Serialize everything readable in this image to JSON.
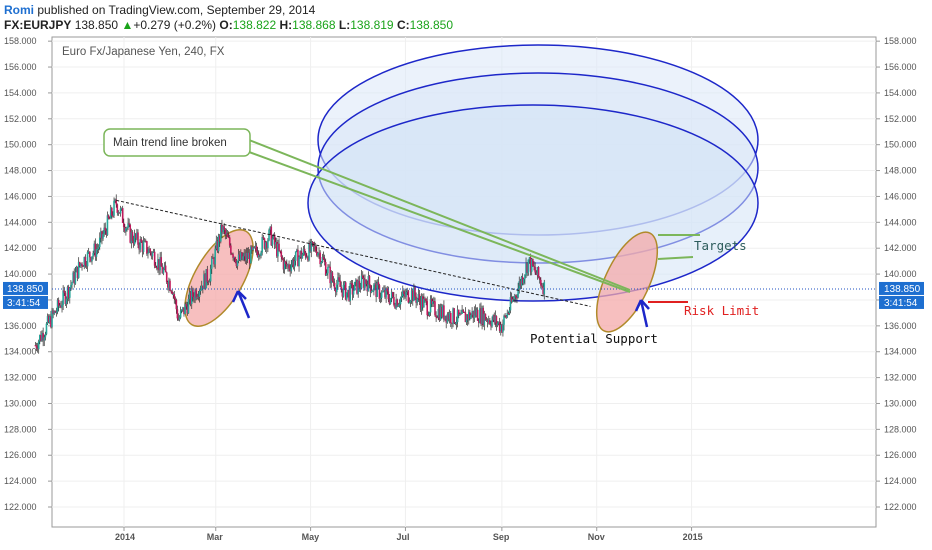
{
  "header": {
    "author": "Romi",
    "published": "published on TradingView.com, September 29, 2014",
    "symbol": "FX:EURJPY",
    "last": "138.850",
    "change": "+0.279 (+0.2%)",
    "o_label": "O:",
    "o_value": "138.822",
    "h_label": "H:",
    "h_value": "138.868",
    "l_label": "L:",
    "l_value": "138.819",
    "c_label": "C:",
    "c_value": "138.850",
    "up_icon": "triangle-up-icon"
  },
  "chart_data": {
    "type": "candlestick",
    "title": "Euro Fx/Japanese Yen, 240, FX",
    "ylim": [
      121,
      158.5
    ],
    "y_ticks": [
      "122.000",
      "124.000",
      "126.000",
      "128.000",
      "130.000",
      "132.000",
      "134.000",
      "136.000",
      "138.000",
      "140.000",
      "142.000",
      "144.000",
      "146.000",
      "148.000",
      "150.000",
      "152.000",
      "154.000",
      "156.000",
      "158.000"
    ],
    "x_ticks": [
      "2014",
      "Mar",
      "May",
      "Jul",
      "Sep",
      "Nov",
      "2015"
    ],
    "current_price_label": "138.850",
    "countdown_label": "3:41:54",
    "price_series": [
      {
        "date": "2013-11-05",
        "close": 134.5
      },
      {
        "date": "2013-11-15",
        "close": 136.5
      },
      {
        "date": "2013-11-25",
        "close": 138.5
      },
      {
        "date": "2013-12-05",
        "close": 141.0
      },
      {
        "date": "2013-12-15",
        "close": 142.0
      },
      {
        "date": "2013-12-27",
        "close": 145.5
      },
      {
        "date": "2014-01-05",
        "close": 143.0
      },
      {
        "date": "2014-01-20",
        "close": 141.5
      },
      {
        "date": "2014-02-01",
        "close": 139.0
      },
      {
        "date": "2014-02-05",
        "close": 136.5
      },
      {
        "date": "2014-02-15",
        "close": 138.5
      },
      {
        "date": "2014-02-25",
        "close": 140.0
      },
      {
        "date": "2014-03-05",
        "close": 143.5
      },
      {
        "date": "2014-03-15",
        "close": 141.0
      },
      {
        "date": "2014-03-25",
        "close": 141.5
      },
      {
        "date": "2014-04-05",
        "close": 143.0
      },
      {
        "date": "2014-04-15",
        "close": 140.5
      },
      {
        "date": "2014-04-25",
        "close": 141.5
      },
      {
        "date": "2014-05-05",
        "close": 142.0
      },
      {
        "date": "2014-05-15",
        "close": 139.5
      },
      {
        "date": "2014-05-25",
        "close": 138.5
      },
      {
        "date": "2014-06-05",
        "close": 139.5
      },
      {
        "date": "2014-06-15",
        "close": 138.5
      },
      {
        "date": "2014-06-25",
        "close": 138.0
      },
      {
        "date": "2014-07-05",
        "close": 138.5
      },
      {
        "date": "2014-07-15",
        "close": 137.5
      },
      {
        "date": "2014-07-25",
        "close": 137.0
      },
      {
        "date": "2014-08-05",
        "close": 136.5
      },
      {
        "date": "2014-08-15",
        "close": 137.0
      },
      {
        "date": "2014-08-25",
        "close": 136.5
      },
      {
        "date": "2014-09-01",
        "close": 136.0
      },
      {
        "date": "2014-09-10",
        "close": 138.5
      },
      {
        "date": "2014-09-18",
        "close": 141.0
      },
      {
        "date": "2014-09-29",
        "close": 138.85
      }
    ],
    "trend_line": [
      {
        "date": "2013-12-27",
        "price": 145.7
      },
      {
        "date": "2014-10-28",
        "price": 137.5
      }
    ],
    "annotations": {
      "callout": "Main trend line broken",
      "targets": "Targets",
      "risk": "Risk Limit",
      "support": "Potential Support"
    },
    "colors": {
      "up": "#26a69a",
      "down": "#c2185b",
      "channel": "#1d27c9",
      "highlight": "#f4a9a9",
      "callout": "#7cb65a",
      "risk": "#e02020"
    }
  }
}
